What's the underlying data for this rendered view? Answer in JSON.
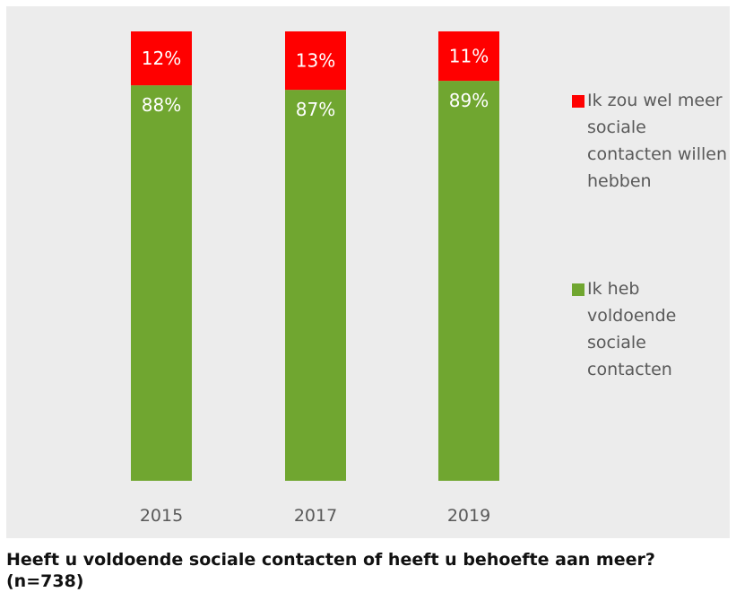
{
  "chart_data": {
    "type": "bar",
    "stacked": true,
    "categories": [
      "2015",
      "2017",
      "2019"
    ],
    "series": [
      {
        "name": "Ik heb voldoende sociale contacten",
        "values": [
          88,
          87,
          89
        ],
        "labels": [
          "88%",
          "87%",
          "89%"
        ],
        "color": "#70a630"
      },
      {
        "name": "Ik zou wel meer sociale contacten willen hebben",
        "values": [
          12,
          13,
          11
        ],
        "labels": [
          "12%",
          "13%",
          "11%"
        ],
        "color": "#ff0000"
      }
    ],
    "ylim": [
      0,
      100
    ],
    "grid": false,
    "legend_position": "right"
  },
  "legend": {
    "items": [
      {
        "label": "Ik zou wel meer sociale contacten willen hebben",
        "color": "#ff0000"
      },
      {
        "label": "Ik heb voldoende sociale contacten",
        "color": "#70a630"
      }
    ]
  },
  "caption": {
    "line1": "Heeft u voldoende sociale contacten of heeft u behoefte aan meer?",
    "line2": "(n=738)"
  },
  "colors": {
    "background": "#ececec",
    "text": "#595959"
  }
}
